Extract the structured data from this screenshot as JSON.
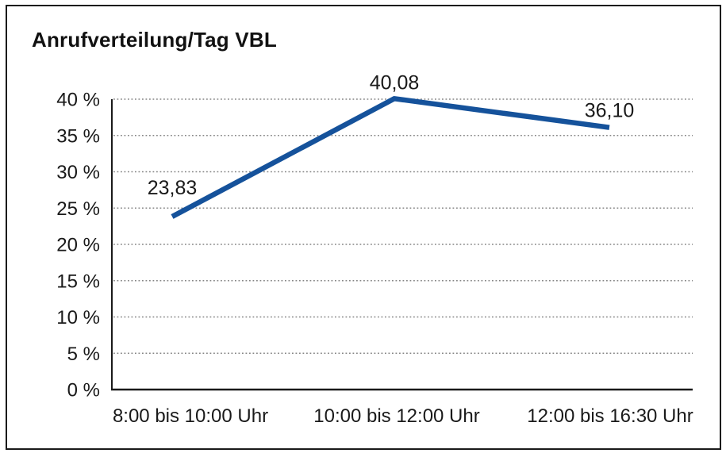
{
  "title": "Anrufverteilung/Tag VBL",
  "colors": {
    "line": "#15529B",
    "grid": "#858585",
    "axis": "#1a1a1a",
    "text": "#1a1a1a",
    "background": "#ffffff",
    "border": "#1a1a1a"
  },
  "chart_data": {
    "type": "line",
    "title": "Anrufverteilung/Tag VBL",
    "categories": [
      "8:00 bis 10:00 Uhr",
      "10:00 bis 12:00 Uhr",
      "12:00 bis 16:30 Uhr"
    ],
    "series": [
      {
        "name": "Anrufverteilung/Tag VBL",
        "values": [
          23.83,
          40.08,
          36.1
        ]
      }
    ],
    "point_labels": [
      "23,83",
      "40,08",
      "36,10"
    ],
    "xlabel": "",
    "ylabel": "",
    "ylim": [
      0,
      40
    ],
    "y_tick_step": 5,
    "y_ticks": [
      {
        "value": 0,
        "label": "0 %"
      },
      {
        "value": 5,
        "label": "5 %"
      },
      {
        "value": 10,
        "label": "10 %"
      },
      {
        "value": 15,
        "label": "15 %"
      },
      {
        "value": 20,
        "label": "20 %"
      },
      {
        "value": 25,
        "label": "25 %"
      },
      {
        "value": 30,
        "label": "30 %"
      },
      {
        "value": 35,
        "label": "35 %"
      },
      {
        "value": 40,
        "label": "40 %"
      }
    ],
    "grid": "horizontal-dotted",
    "legend": "none"
  }
}
